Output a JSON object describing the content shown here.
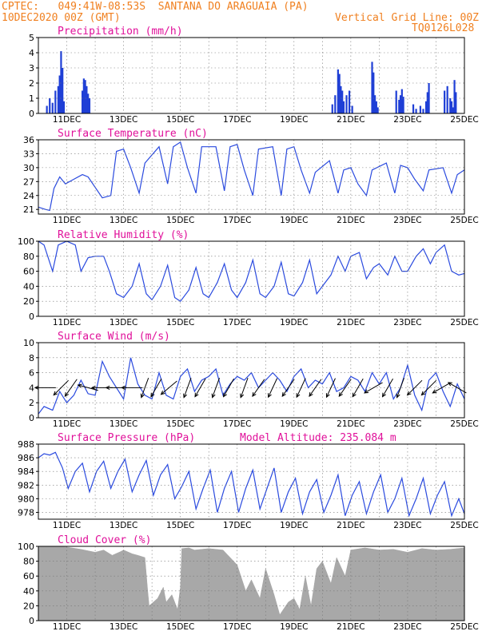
{
  "header": {
    "source": "CPTEC:",
    "coords": "049:41W-08:53S",
    "location": "SANTANA DO ARAGUAIA (PA)",
    "run": "10DEC2020 00Z (GMT)",
    "grid_note": "Vertical Grid Line: 00Z",
    "code": "TQ0126L028"
  },
  "colors": {
    "header": "#f08020",
    "title": "#e0109a",
    "line": "#2a4adf",
    "bar": "#1f3fd6",
    "fill": "#a8a8a8",
    "wind": "#000000"
  },
  "x_axis": {
    "start_day": 10,
    "end_day": 25,
    "tick_labels": [
      "11DEC",
      "13DEC",
      "15DEC",
      "17DEC",
      "19DEC",
      "21DEC",
      "23DEC",
      "25DEC"
    ],
    "vertical_grid": "00Z daily"
  },
  "chart_data": [
    {
      "id": "precip",
      "type": "bar",
      "title": "Precipitation (mm/h)",
      "ylim": [
        0,
        5
      ],
      "yticks": [
        0,
        1,
        2,
        3,
        4,
        5
      ],
      "x": [
        10.3,
        10.4,
        10.5,
        10.6,
        10.7,
        10.75,
        10.8,
        10.85,
        10.9,
        11.55,
        11.6,
        11.65,
        11.7,
        11.75,
        11.8,
        20.35,
        20.45,
        20.55,
        20.6,
        20.65,
        20.7,
        20.75,
        20.85,
        20.95,
        21.05,
        21.75,
        21.8,
        21.85,
        21.9,
        21.95,
        22.6,
        22.7,
        22.75,
        22.8,
        22.85,
        23.2,
        23.3,
        23.45,
        23.55,
        23.65,
        23.7,
        23.75,
        24.3,
        24.4,
        24.5,
        24.55,
        24.6,
        24.65,
        24.7
      ],
      "values": [
        0.5,
        1.0,
        0.7,
        1.5,
        1.8,
        2.5,
        4.1,
        3.0,
        0.8,
        1.5,
        2.3,
        2.2,
        1.8,
        1.3,
        1.0,
        0.6,
        1.2,
        2.9,
        2.6,
        1.8,
        1.5,
        0.8,
        1.2,
        1.5,
        0.5,
        3.4,
        2.7,
        1.2,
        0.8,
        0.4,
        1.5,
        0.9,
        1.2,
        1.6,
        1.1,
        0.6,
        0.3,
        0.5,
        0.3,
        0.8,
        1.4,
        2.0,
        1.5,
        1.8,
        1.0,
        0.8,
        0.4,
        2.2,
        1.4
      ]
    },
    {
      "id": "temp",
      "type": "line",
      "title": "Surface Temperature (nC)",
      "ylim": [
        20,
        36
      ],
      "yticks": [
        21,
        24,
        27,
        30,
        33,
        36
      ],
      "x": [
        10.0,
        10.25,
        10.4,
        10.55,
        10.75,
        10.95,
        11.25,
        11.55,
        11.75,
        12.25,
        12.55,
        12.75,
        13.0,
        13.25,
        13.55,
        13.75,
        14.25,
        14.55,
        14.75,
        15.0,
        15.25,
        15.55,
        15.75,
        16.25,
        16.55,
        16.75,
        17.0,
        17.25,
        17.55,
        17.75,
        18.25,
        18.55,
        18.75,
        19.0,
        19.25,
        19.55,
        19.75,
        20.25,
        20.55,
        20.75,
        21.0,
        21.25,
        21.55,
        21.75,
        22.25,
        22.55,
        22.75,
        23.0,
        23.25,
        23.55,
        23.75,
        24.25,
        24.55,
        24.75,
        25.0
      ],
      "values": [
        21.5,
        21.0,
        20.8,
        25.5,
        28.0,
        26.5,
        27.5,
        28.5,
        28.0,
        23.5,
        24.0,
        33.5,
        34.0,
        30.0,
        24.5,
        31.0,
        34.5,
        26.5,
        34.5,
        35.5,
        30.0,
        24.5,
        34.5,
        34.5,
        25.0,
        34.5,
        35.0,
        29.5,
        24.0,
        34.0,
        34.5,
        24.0,
        34.0,
        34.5,
        29.5,
        24.5,
        29.0,
        31.5,
        24.5,
        29.5,
        30.0,
        26.5,
        24.0,
        29.5,
        31.0,
        24.5,
        30.5,
        30.0,
        27.5,
        25.0,
        29.5,
        30.0,
        24.5,
        28.5,
        29.5
      ]
    },
    {
      "id": "rh",
      "type": "line",
      "title": "Relative Humidity (%)",
      "ylim": [
        0,
        100
      ],
      "yticks": [
        0,
        20,
        40,
        60,
        80,
        100
      ],
      "x": [
        10.0,
        10.2,
        10.5,
        10.7,
        11.0,
        11.3,
        11.5,
        11.75,
        12.0,
        12.3,
        12.5,
        12.75,
        13.0,
        13.3,
        13.55,
        13.8,
        14.0,
        14.3,
        14.55,
        14.8,
        15.0,
        15.3,
        15.55,
        15.8,
        16.0,
        16.3,
        16.55,
        16.8,
        17.0,
        17.3,
        17.55,
        17.8,
        18.0,
        18.3,
        18.55,
        18.8,
        19.0,
        19.3,
        19.55,
        19.8,
        20.0,
        20.3,
        20.55,
        20.8,
        21.0,
        21.3,
        21.55,
        21.8,
        22.0,
        22.3,
        22.55,
        22.8,
        23.0,
        23.3,
        23.55,
        23.8,
        24.0,
        24.3,
        24.55,
        24.8,
        25.0
      ],
      "values": [
        100,
        95,
        60,
        95,
        100,
        95,
        60,
        78,
        80,
        80,
        60,
        30,
        25,
        40,
        70,
        30,
        22,
        40,
        68,
        25,
        20,
        35,
        65,
        30,
        25,
        45,
        70,
        35,
        25,
        45,
        75,
        30,
        25,
        40,
        72,
        30,
        27,
        45,
        75,
        30,
        40,
        55,
        80,
        60,
        80,
        85,
        50,
        65,
        70,
        55,
        80,
        60,
        60,
        80,
        90,
        70,
        85,
        95,
        60,
        55,
        57
      ]
    },
    {
      "id": "wind",
      "type": "line",
      "title": "Surface Wind (m/s)",
      "ylim": [
        0,
        10
      ],
      "yticks": [
        0,
        2,
        4,
        6,
        8,
        10
      ],
      "x": [
        10.0,
        10.2,
        10.5,
        10.75,
        11.0,
        11.25,
        11.5,
        11.75,
        12.0,
        12.25,
        12.5,
        12.75,
        13.0,
        13.25,
        13.5,
        13.75,
        14.0,
        14.25,
        14.5,
        14.75,
        15.0,
        15.25,
        15.5,
        15.75,
        16.0,
        16.25,
        16.5,
        16.75,
        17.0,
        17.25,
        17.5,
        17.75,
        18.0,
        18.25,
        18.5,
        18.75,
        19.0,
        19.25,
        19.5,
        19.75,
        20.0,
        20.25,
        20.5,
        20.75,
        21.0,
        21.25,
        21.5,
        21.75,
        22.0,
        22.25,
        22.5,
        22.75,
        23.0,
        23.25,
        23.5,
        23.75,
        24.0,
        24.25,
        24.5,
        24.75,
        25.0
      ],
      "values": [
        0.5,
        1.5,
        1.0,
        3.5,
        2.0,
        3.0,
        5.0,
        3.2,
        3.0,
        7.5,
        5.5,
        4.0,
        2.5,
        8.0,
        4.5,
        3.0,
        2.5,
        6.0,
        3.0,
        2.5,
        5.5,
        6.5,
        3.5,
        5.0,
        5.5,
        6.5,
        3.0,
        4.5,
        5.5,
        5.0,
        6.0,
        4.0,
        5.0,
        6.0,
        5.0,
        3.5,
        5.5,
        6.5,
        4.0,
        5.0,
        4.5,
        6.0,
        3.5,
        4.0,
        5.5,
        5.0,
        3.5,
        6.0,
        4.5,
        6.0,
        2.5,
        4.0,
        7.0,
        3.0,
        1.0,
        5.0,
        6.0,
        3.5,
        1.5,
        4.5,
        2.5
      ],
      "barbs": [
        {
          "day": 10.25,
          "dir_deg": 270
        },
        {
          "day": 10.8,
          "dir_deg": 225
        },
        {
          "day": 11.15,
          "dir_deg": 215
        },
        {
          "day": 11.75,
          "dir_deg": 285
        },
        {
          "day": 12.25,
          "dir_deg": 270
        },
        {
          "day": 12.75,
          "dir_deg": 270
        },
        {
          "day": 13.3,
          "dir_deg": 270
        },
        {
          "day": 13.75,
          "dir_deg": 200
        },
        {
          "day": 14.15,
          "dir_deg": 210
        },
        {
          "day": 14.6,
          "dir_deg": 230
        },
        {
          "day": 15.25,
          "dir_deg": 200
        },
        {
          "day": 15.7,
          "dir_deg": 210
        },
        {
          "day": 16.25,
          "dir_deg": 200
        },
        {
          "day": 16.7,
          "dir_deg": 210
        },
        {
          "day": 17.25,
          "dir_deg": 200
        },
        {
          "day": 17.75,
          "dir_deg": 215
        },
        {
          "day": 18.25,
          "dir_deg": 205
        },
        {
          "day": 18.8,
          "dir_deg": 215
        },
        {
          "day": 19.25,
          "dir_deg": 205
        },
        {
          "day": 19.75,
          "dir_deg": 215
        },
        {
          "day": 20.3,
          "dir_deg": 205
        },
        {
          "day": 20.8,
          "dir_deg": 215
        },
        {
          "day": 21.25,
          "dir_deg": 210
        },
        {
          "day": 21.8,
          "dir_deg": 240
        },
        {
          "day": 22.3,
          "dir_deg": 210
        },
        {
          "day": 22.75,
          "dir_deg": 200
        },
        {
          "day": 23.25,
          "dir_deg": 225
        },
        {
          "day": 23.75,
          "dir_deg": 225
        },
        {
          "day": 24.2,
          "dir_deg": 240
        },
        {
          "day": 24.75,
          "dir_deg": 300
        }
      ]
    },
    {
      "id": "pres",
      "type": "line",
      "title": "Surface Pressure (hPa)",
      "annotation": "Model Altitude: 235.084 m",
      "ylim": [
        977,
        988
      ],
      "yticks": [
        978,
        980,
        982,
        984,
        986,
        988
      ],
      "x": [
        10.0,
        10.2,
        10.4,
        10.6,
        10.85,
        11.05,
        11.3,
        11.55,
        11.8,
        12.05,
        12.3,
        12.55,
        12.8,
        13.05,
        13.3,
        13.55,
        13.8,
        14.05,
        14.3,
        14.55,
        14.8,
        15.05,
        15.3,
        15.55,
        15.8,
        16.05,
        16.3,
        16.55,
        16.8,
        17.05,
        17.3,
        17.55,
        17.8,
        18.05,
        18.3,
        18.55,
        18.8,
        19.05,
        19.3,
        19.55,
        19.8,
        20.05,
        20.3,
        20.55,
        20.8,
        21.05,
        21.3,
        21.55,
        21.8,
        22.05,
        22.3,
        22.55,
        22.8,
        23.05,
        23.3,
        23.55,
        23.8,
        24.05,
        24.3,
        24.55,
        24.8,
        25.0
      ],
      "values": [
        986,
        986.6,
        986.4,
        986.8,
        984.5,
        981.5,
        984,
        985.2,
        981,
        984,
        985.5,
        981.5,
        984,
        985.8,
        981,
        983.5,
        985.6,
        980.5,
        983.5,
        985,
        980,
        981.8,
        984,
        978.5,
        981.5,
        984.2,
        978,
        981.5,
        984,
        978,
        981.5,
        984.2,
        978.5,
        981.5,
        984.5,
        978,
        981,
        983,
        977.8,
        981,
        982.8,
        978,
        980.5,
        983.5,
        977.5,
        980.5,
        982.5,
        977.8,
        981,
        983.5,
        978,
        980,
        983,
        977.5,
        980,
        983,
        977.8,
        980.5,
        982.5,
        977.5,
        980,
        977.8
      ]
    },
    {
      "id": "cloud",
      "type": "area",
      "title": "Cloud Cover (%)",
      "ylim": [
        0,
        100
      ],
      "yticks": [
        0,
        20,
        40,
        60,
        80,
        100
      ],
      "x": [
        10.0,
        11.0,
        11.5,
        12.0,
        12.3,
        12.6,
        12.9,
        13.0,
        13.3,
        13.5,
        13.75,
        13.85,
        13.9,
        14.2,
        14.4,
        14.5,
        14.7,
        14.9,
        15.0,
        15.05,
        15.3,
        15.5,
        15.75,
        16.0,
        16.5,
        17.0,
        17.3,
        17.5,
        17.8,
        18.0,
        18.3,
        18.5,
        18.8,
        19.0,
        19.2,
        19.4,
        19.6,
        19.8,
        20.0,
        20.3,
        20.5,
        20.8,
        21.0,
        21.5,
        22.0,
        22.5,
        23.0,
        23.5,
        24.0,
        24.5,
        25.0
      ],
      "values": [
        100,
        99,
        96,
        92,
        95,
        88,
        93,
        95,
        90,
        88,
        85,
        40,
        20,
        30,
        45,
        25,
        35,
        15,
        45,
        97,
        98,
        95,
        96,
        97,
        95,
        75,
        40,
        55,
        30,
        70,
        35,
        8,
        25,
        30,
        15,
        60,
        20,
        70,
        80,
        50,
        85,
        60,
        95,
        98,
        95,
        96,
        92,
        97,
        95,
        96,
        98
      ]
    }
  ]
}
